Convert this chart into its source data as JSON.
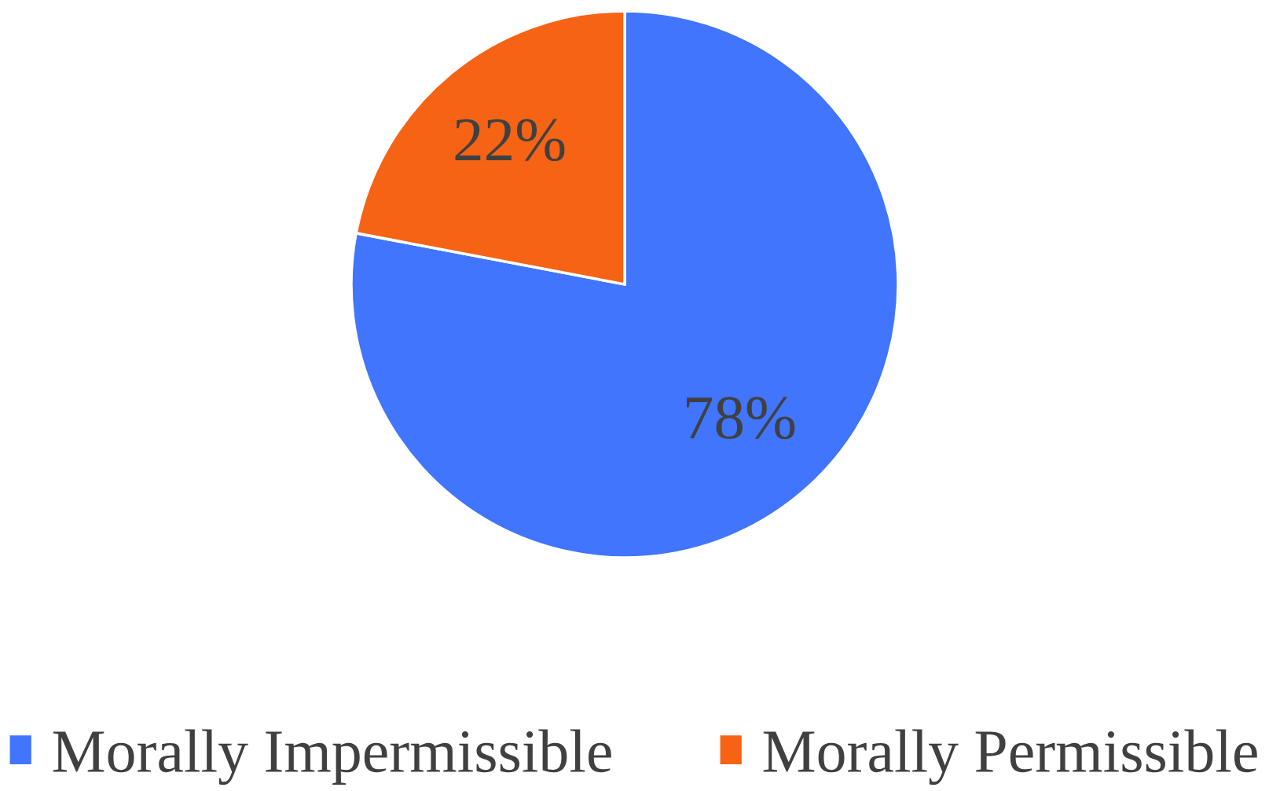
{
  "chart_data": {
    "type": "pie",
    "categories": [
      "Morally Impermissible",
      "Morally Permissible"
    ],
    "values": [
      78,
      22
    ],
    "colors": [
      "#4175fe",
      "#f66314"
    ],
    "value_labels": [
      "78%",
      "22%"
    ],
    "legend": "bottom"
  }
}
